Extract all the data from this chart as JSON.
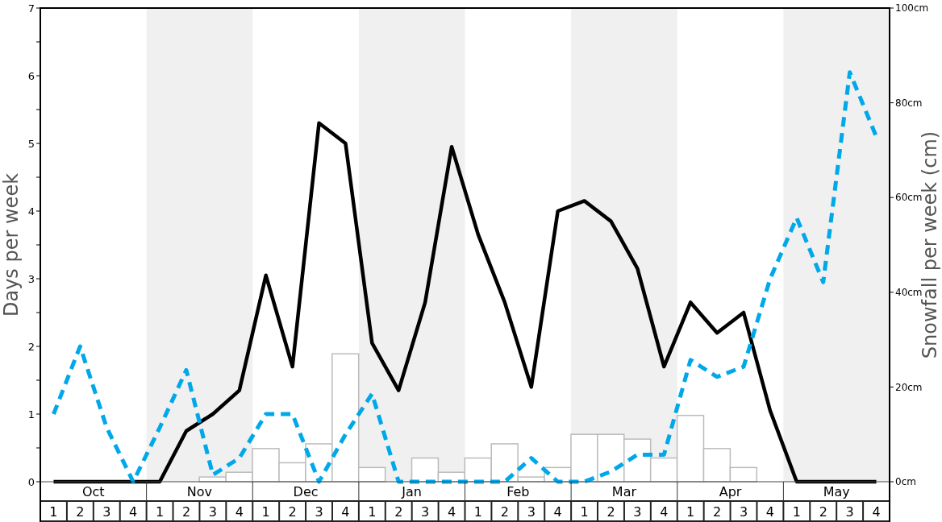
{
  "chart_data": {
    "type": "line",
    "ylabel": "Days per week",
    "y2label": "Snowfall per week (cm)",
    "categories": [
      "1",
      "2",
      "3",
      "4",
      "1",
      "2",
      "3",
      "4",
      "1",
      "2",
      "3",
      "4",
      "1",
      "2",
      "3",
      "4",
      "1",
      "2",
      "3",
      "4",
      "1",
      "2",
      "3",
      "4",
      "1",
      "2",
      "3",
      "4",
      "1",
      "2",
      "3",
      "4"
    ],
    "annotations": [
      "Oct",
      "Nov",
      "Dec",
      "Jan",
      "Feb",
      "Mar",
      "Apr",
      "May"
    ],
    "ylim": [
      0,
      7
    ],
    "yticks": [
      0,
      {
        "value": 0.5,
        "label": null
      },
      1,
      {
        "value": 1.5,
        "label": null
      },
      2,
      {
        "value": 2.5,
        "label": null
      },
      3,
      {
        "value": 3.5,
        "label": null
      },
      4,
      {
        "value": 4.5,
        "label": null
      },
      5,
      {
        "value": 5.5,
        "label": null
      },
      6,
      {
        "value": 6.5,
        "label": null
      },
      7
    ],
    "y2lim": [
      0,
      100
    ],
    "y2ticks": [
      {
        "value": 0,
        "label": "0cm"
      },
      {
        "value": 20,
        "label": "20cm"
      },
      {
        "value": 40,
        "label": "40cm"
      },
      {
        "value": 60,
        "label": "60cm"
      },
      {
        "value": 80,
        "label": "80cm"
      },
      {
        "value": 100,
        "label": "100cm"
      }
    ],
    "series": [
      {
        "type": "bar",
        "axis": "y2",
        "color": "#ffffff",
        "values": [
          0,
          0,
          0,
          0,
          0,
          0,
          1,
          2,
          7,
          4,
          8,
          27,
          3,
          0,
          5,
          2,
          5,
          8,
          1,
          3,
          10,
          10,
          9,
          5,
          14,
          7,
          3,
          0,
          0,
          0,
          0,
          0
        ]
      },
      {
        "color": "#000000",
        "line_style": "solid",
        "values": [
          0,
          0,
          0,
          0,
          0,
          0.75,
          1.0,
          1.35,
          3.05,
          1.7,
          5.3,
          5.0,
          2.05,
          1.35,
          2.65,
          4.95,
          3.65,
          2.65,
          1.4,
          4.0,
          4.15,
          3.85,
          3.15,
          1.7,
          2.65,
          2.2,
          2.5,
          1.05,
          0,
          0,
          0,
          0
        ]
      },
      {
        "color": "#00a8ea",
        "line_style": "dashed",
        "values": [
          1.0,
          2.0,
          0.8,
          0,
          0.8,
          1.65,
          0.1,
          0.35,
          1.0,
          1.0,
          0,
          0.7,
          1.3,
          0,
          0,
          0,
          0,
          0,
          0.35,
          0,
          0,
          0.15,
          0.4,
          0.4,
          1.8,
          1.55,
          1.7,
          3.0,
          3.9,
          2.95,
          6.05,
          5.1
        ]
      }
    ]
  }
}
